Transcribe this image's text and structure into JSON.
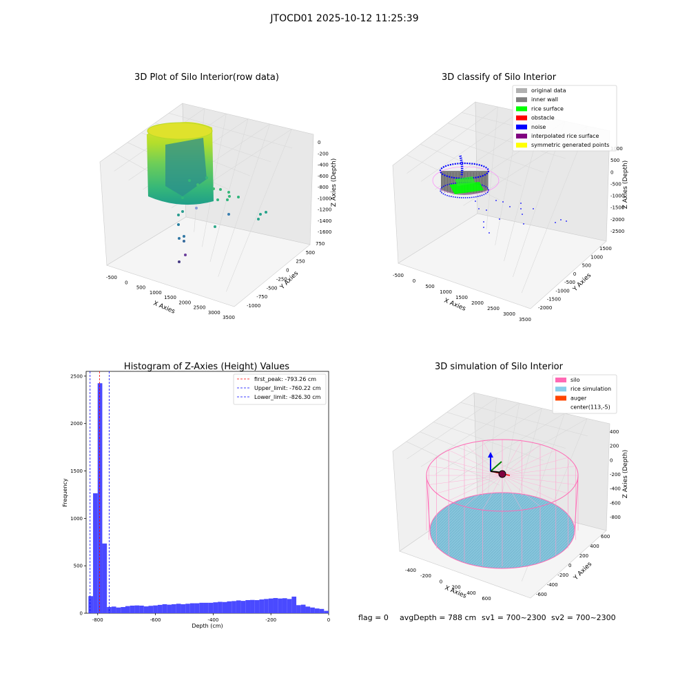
{
  "figure": {
    "suptitle": "JTOCD01 2025-10-12 11:25:39"
  },
  "status_line": {
    "flag": "flag = 0",
    "avg_depth": "avgDepth = 788 cm",
    "sv1": "sv1 = 700~2300",
    "sv2": "sv2 = 700~2300"
  },
  "colors": {
    "original_data": "#b0b0b0",
    "inner_wall": "#808080",
    "rice_surface": "#00ff00",
    "obstacle": "#ff0000",
    "noise": "#0000ff",
    "interpolated_rice_surface": "#800080",
    "symmetric_generated_points": "#ffff00",
    "silo": "#ff69b4",
    "rice_simulation": "#87ceeb",
    "auger": "#ff4500",
    "histogram_bar": "#4a4aff"
  },
  "chart_data": [
    {
      "type": "scatter3d",
      "title": "3D Plot of Silo Interior(row data)",
      "xlabel": "X Axies",
      "ylabel": "Y Axies",
      "zlabel": "Z Axies (Depth)",
      "x_ticks": [
        "-500",
        "0",
        "500",
        "1000",
        "1500",
        "2000",
        "2500",
        "3000",
        "3500"
      ],
      "y_ticks": [
        "-1000",
        "-750",
        "-500",
        "-250",
        "0",
        "250",
        "500",
        "750"
      ],
      "z_ticks": [
        "-1600",
        "-1400",
        "-1200",
        "-1000",
        "-800",
        "-600",
        "-400",
        "-200",
        "0"
      ],
      "colormap": "viridis",
      "grid": true
    },
    {
      "type": "scatter3d",
      "title": "3D classify of Silo Interior",
      "xlabel": "X Axies",
      "ylabel": "Y Axies",
      "zlabel": "Z Axies (Depth)",
      "x_ticks": [
        "-500",
        "0",
        "500",
        "1000",
        "1500",
        "2000",
        "2500",
        "3000",
        "3500"
      ],
      "y_ticks": [
        "-2000",
        "-1500",
        "-1000",
        "-500",
        "0",
        "500",
        "1000",
        "1500"
      ],
      "z_ticks": [
        "-2500",
        "-2000",
        "-1500",
        "-1000",
        "-500",
        "0",
        "500",
        "1000"
      ],
      "legend_position": "top-right",
      "legend": [
        {
          "label": "original data",
          "color": "#b0b0b0"
        },
        {
          "label": "inner wall",
          "color": "#808080"
        },
        {
          "label": "rice surface",
          "color": "#00ff00"
        },
        {
          "label": "obstacle",
          "color": "#ff0000"
        },
        {
          "label": "noise",
          "color": "#0000ff"
        },
        {
          "label": "interpolated rice surface",
          "color": "#800080"
        },
        {
          "label": "symmetric generated points",
          "color": "#ffff00"
        }
      ],
      "grid": true
    },
    {
      "type": "bar",
      "title": "Histogram of Z-Axies (Height) Values",
      "xlabel": "Depth (cm)",
      "ylabel": "Frequency",
      "xlim": [
        -840,
        0
      ],
      "ylim": [
        0,
        2550
      ],
      "x_ticks": [
        -800,
        -600,
        -400,
        -200,
        0
      ],
      "y_ticks": [
        0,
        500,
        1000,
        1500,
        2000,
        2500
      ],
      "bin_width": 16,
      "bins": [
        [
          -832,
          180
        ],
        [
          -816,
          1265
        ],
        [
          -800,
          2425
        ],
        [
          -784,
          735
        ],
        [
          -768,
          65
        ],
        [
          -752,
          70
        ],
        [
          -736,
          60
        ],
        [
          -720,
          65
        ],
        [
          -704,
          75
        ],
        [
          -688,
          80
        ],
        [
          -672,
          82
        ],
        [
          -656,
          80
        ],
        [
          -640,
          72
        ],
        [
          -624,
          78
        ],
        [
          -608,
          82
        ],
        [
          -592,
          88
        ],
        [
          -576,
          95
        ],
        [
          -560,
          90
        ],
        [
          -544,
          95
        ],
        [
          -528,
          100
        ],
        [
          -512,
          95
        ],
        [
          -496,
          100
        ],
        [
          -480,
          105
        ],
        [
          -464,
          105
        ],
        [
          -448,
          110
        ],
        [
          -432,
          110
        ],
        [
          -416,
          110
        ],
        [
          -400,
          115
        ],
        [
          -384,
          120
        ],
        [
          -368,
          118
        ],
        [
          -352,
          125
        ],
        [
          -336,
          128
        ],
        [
          -320,
          135
        ],
        [
          -304,
          130
        ],
        [
          -288,
          138
        ],
        [
          -272,
          140
        ],
        [
          -256,
          138
        ],
        [
          -240,
          145
        ],
        [
          -224,
          150
        ],
        [
          -208,
          155
        ],
        [
          -192,
          160
        ],
        [
          -176,
          155
        ],
        [
          -160,
          158
        ],
        [
          -144,
          150
        ],
        [
          -128,
          175
        ],
        [
          -112,
          85
        ],
        [
          -96,
          90
        ],
        [
          -80,
          70
        ],
        [
          -64,
          60
        ],
        [
          -48,
          50
        ],
        [
          -32,
          45
        ],
        [
          -16,
          25
        ]
      ],
      "vlines": [
        {
          "label": "first_peak: -793.26 cm",
          "x": -793.26,
          "color": "#ff0000"
        },
        {
          "label": "Upper_limit: -760.22 cm",
          "x": -760.22,
          "color": "#0000ff"
        },
        {
          "label": "Lower_limit: -826.30 cm",
          "x": -826.3,
          "color": "#0000ff"
        }
      ],
      "legend_position": "top-right"
    },
    {
      "type": "surface3d",
      "title": "3D simulation of Silo Interior",
      "xlabel": "X Axies",
      "ylabel": "Y Axies",
      "zlabel": "Z Axies (Depth)",
      "x_ticks": [
        "-400",
        "-200",
        "0",
        "200",
        "400",
        "600"
      ],
      "y_ticks": [
        "-600",
        "-400",
        "-200",
        "0",
        "200",
        "400",
        "600"
      ],
      "z_ticks": [
        "-800",
        "-600",
        "-400",
        "-200",
        "0",
        "200",
        "400"
      ],
      "legend_position": "top-right",
      "legend": [
        {
          "label": "silo",
          "color": "#ff69b4"
        },
        {
          "label": "rice simulation",
          "color": "#87ceeb"
        },
        {
          "label": "auger",
          "color": "#ff4500"
        },
        {
          "label": "center(113,-5)",
          "color": ""
        }
      ],
      "grid": true
    }
  ]
}
